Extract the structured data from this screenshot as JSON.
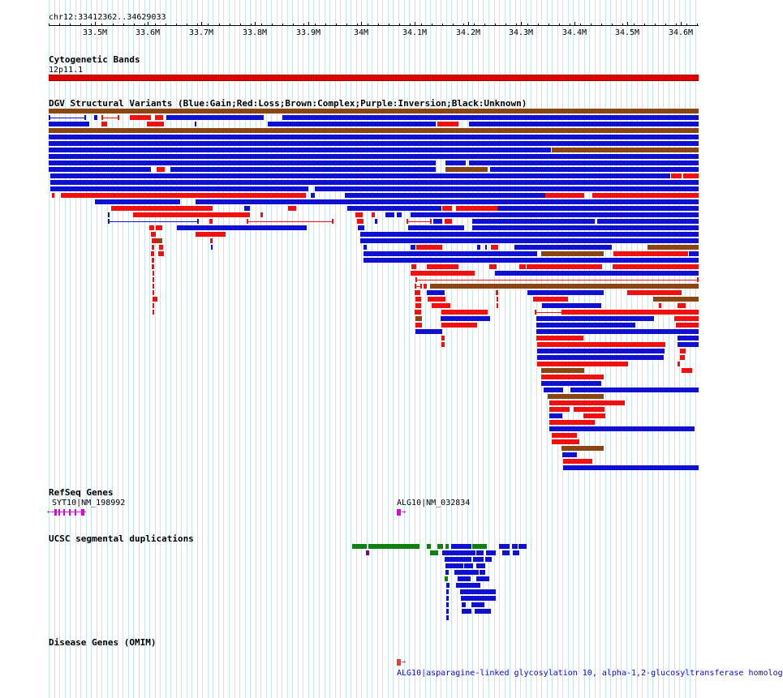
{
  "position_label": "chr12:33412362..34629033",
  "ruler_ticks": [
    "33.5M",
    "33.6M",
    "33.7M",
    "33.8M",
    "33.9M",
    "34M",
    "34.1M",
    "34.2M",
    "34.3M",
    "34.4M",
    "34.5M",
    "34.6M"
  ],
  "tracks": {
    "cytoband": {
      "title": "Cytogenetic Bands",
      "band_label": "12p11.1"
    },
    "dgv": {
      "title": "DGV Structural Variants (Blue:Gain;Red:Loss;Brown:Complex;Purple:Inversion;Black:Unknown)"
    },
    "refseq": {
      "title": "RefSeq Genes",
      "genes": [
        {
          "label": "SYT10|NM_198992"
        },
        {
          "label": "ALG10|NM_032834"
        }
      ]
    },
    "segdup": {
      "title": "UCSC segmental duplications"
    },
    "omim": {
      "title": "Disease Genes (OMIM)",
      "entry_label": "ALG10|asparagine-linked glycosylation 10, alpha-1,2-glucosyltransferase homolog"
    }
  },
  "colors": {
    "gain": "#1010d0",
    "loss": "#f01010",
    "complex": "#8b4513",
    "cytoband": "#e00000",
    "segdup_green": "#108010",
    "gene": "#e000e0",
    "grid": "#c8e4ec"
  },
  "icons": {
    "gene_strand_left": "left-arrow-icon",
    "gene_strand_right": "right-arrow-icon"
  }
}
